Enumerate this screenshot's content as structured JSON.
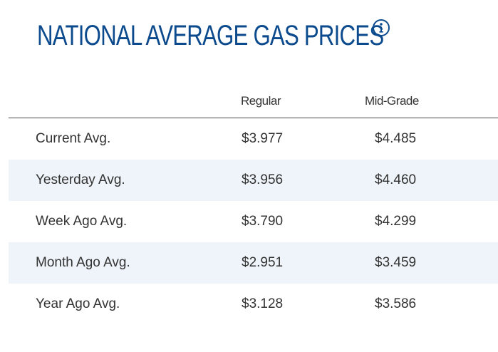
{
  "header": {
    "title": "NATIONAL AVERAGE GAS PRICES",
    "info_icon": "info-circle-icon"
  },
  "table": {
    "columns": [
      "Regular",
      "Mid-Grade"
    ],
    "rows": [
      {
        "label": "Current Avg.",
        "regular": "$3.977",
        "midgrade": "$4.485"
      },
      {
        "label": "Yesterday Avg.",
        "regular": "$3.956",
        "midgrade": "$4.460"
      },
      {
        "label": "Week Ago Avg.",
        "regular": "$3.790",
        "midgrade": "$4.299"
      },
      {
        "label": "Month Ago Avg.",
        "regular": "$2.951",
        "midgrade": "$3.459"
      },
      {
        "label": "Year Ago Avg.",
        "regular": "$3.128",
        "midgrade": "$3.586"
      }
    ]
  },
  "colors": {
    "title": "#0c4a8e",
    "row_alt_bg": "#eef4f9",
    "text": "#333333"
  }
}
